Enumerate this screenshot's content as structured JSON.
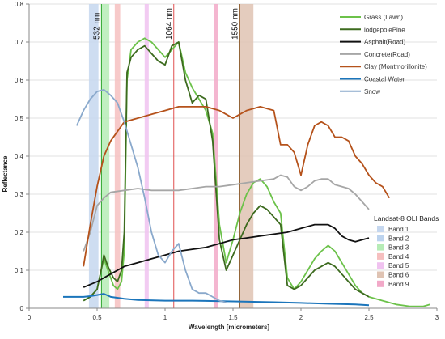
{
  "chart_data": {
    "type": "line",
    "title": "",
    "xlabel": "Wavelength [micrometers]",
    "ylabel": "Reflectance",
    "xlim": [
      0,
      3
    ],
    "ylim": [
      0,
      0.8
    ],
    "x_ticks": [
      0,
      0.5,
      1,
      1.5,
      2,
      2.5,
      3
    ],
    "x_tick_labels": [
      "0",
      "0.5",
      "1",
      "1.5",
      "2",
      "2.5",
      "3"
    ],
    "y_ticks": [
      0,
      0.1,
      0.2,
      0.3,
      0.4,
      0.5,
      0.6,
      0.7,
      0.8
    ],
    "y_tick_labels": [
      "0",
      "0.1",
      "0.2",
      "0.3",
      "0.4",
      "0.5",
      "0.6",
      "0.7",
      "0.8"
    ],
    "grid": "horizontal",
    "legend_position": "top-right",
    "series": [
      {
        "name": "Grass (Lawn)",
        "color": "#6cc24a",
        "width": 1.8,
        "x": [
          0.4,
          0.45,
          0.5,
          0.53,
          0.55,
          0.58,
          0.62,
          0.65,
          0.68,
          0.7,
          0.72,
          0.75,
          0.8,
          0.85,
          0.9,
          0.95,
          1.0,
          1.05,
          1.1,
          1.15,
          1.2,
          1.25,
          1.3,
          1.35,
          1.4,
          1.45,
          1.5,
          1.55,
          1.6,
          1.65,
          1.7,
          1.75,
          1.8,
          1.85,
          1.9,
          1.95,
          2.0,
          2.05,
          2.1,
          2.15,
          2.2,
          2.25,
          2.3,
          2.35,
          2.4,
          2.45,
          2.5,
          2.6,
          2.7,
          2.8,
          2.9,
          2.95
        ],
        "y": [
          0.02,
          0.03,
          0.05,
          0.1,
          0.13,
          0.1,
          0.06,
          0.05,
          0.07,
          0.15,
          0.6,
          0.68,
          0.7,
          0.71,
          0.7,
          0.68,
          0.66,
          0.68,
          0.7,
          0.62,
          0.58,
          0.55,
          0.52,
          0.46,
          0.22,
          0.12,
          0.18,
          0.25,
          0.3,
          0.33,
          0.34,
          0.32,
          0.28,
          0.25,
          0.08,
          0.05,
          0.07,
          0.1,
          0.13,
          0.15,
          0.165,
          0.15,
          0.12,
          0.09,
          0.06,
          0.04,
          0.03,
          0.02,
          0.01,
          0.005,
          0.005,
          0.01
        ]
      },
      {
        "name": "lodgepolePine",
        "color": "#3d6b1f",
        "width": 1.8,
        "x": [
          0.4,
          0.45,
          0.5,
          0.53,
          0.55,
          0.58,
          0.62,
          0.65,
          0.68,
          0.7,
          0.72,
          0.75,
          0.8,
          0.85,
          0.9,
          0.95,
          1.0,
          1.05,
          1.1,
          1.15,
          1.2,
          1.25,
          1.3,
          1.35,
          1.4,
          1.45,
          1.5,
          1.55,
          1.6,
          1.65,
          1.7,
          1.75,
          1.8,
          1.85,
          1.9,
          1.95,
          2.0,
          2.05,
          2.1,
          2.15,
          2.2,
          2.25,
          2.3,
          2.35,
          2.4,
          2.45,
          2.5
        ],
        "y": [
          0.02,
          0.03,
          0.05,
          0.1,
          0.14,
          0.11,
          0.08,
          0.07,
          0.1,
          0.2,
          0.62,
          0.66,
          0.68,
          0.69,
          0.67,
          0.65,
          0.64,
          0.69,
          0.7,
          0.6,
          0.54,
          0.56,
          0.55,
          0.44,
          0.18,
          0.1,
          0.14,
          0.18,
          0.22,
          0.25,
          0.27,
          0.26,
          0.24,
          0.22,
          0.06,
          0.05,
          0.06,
          0.08,
          0.1,
          0.11,
          0.12,
          0.11,
          0.09,
          0.07,
          0.05,
          0.04,
          0.03
        ]
      },
      {
        "name": "Asphalt(Road)",
        "color": "#111111",
        "width": 1.8,
        "x": [
          0.4,
          0.5,
          0.6,
          0.7,
          0.8,
          0.9,
          1.0,
          1.1,
          1.2,
          1.3,
          1.4,
          1.5,
          1.6,
          1.7,
          1.8,
          1.9,
          2.0,
          2.1,
          2.2,
          2.25,
          2.3,
          2.35,
          2.4,
          2.45,
          2.5
        ],
        "y": [
          0.055,
          0.07,
          0.09,
          0.11,
          0.12,
          0.13,
          0.14,
          0.15,
          0.155,
          0.16,
          0.17,
          0.18,
          0.185,
          0.19,
          0.195,
          0.2,
          0.21,
          0.22,
          0.22,
          0.21,
          0.19,
          0.18,
          0.175,
          0.18,
          0.185
        ]
      },
      {
        "name": "Concrete(Road)",
        "color": "#a6a6a6",
        "width": 1.8,
        "x": [
          0.4,
          0.45,
          0.5,
          0.55,
          0.6,
          0.7,
          0.8,
          0.9,
          1.0,
          1.1,
          1.2,
          1.3,
          1.4,
          1.5,
          1.6,
          1.7,
          1.8,
          1.85,
          1.9,
          1.95,
          2.0,
          2.05,
          2.1,
          2.15,
          2.2,
          2.25,
          2.3,
          2.35,
          2.4,
          2.45,
          2.5
        ],
        "y": [
          0.15,
          0.2,
          0.27,
          0.29,
          0.305,
          0.31,
          0.315,
          0.31,
          0.31,
          0.31,
          0.315,
          0.32,
          0.32,
          0.325,
          0.33,
          0.335,
          0.34,
          0.35,
          0.345,
          0.32,
          0.31,
          0.32,
          0.335,
          0.34,
          0.34,
          0.325,
          0.32,
          0.315,
          0.3,
          0.28,
          0.26
        ]
      },
      {
        "name": "Clay (Montmorillonite)",
        "color": "#b5521b",
        "width": 1.8,
        "x": [
          0.4,
          0.45,
          0.5,
          0.55,
          0.6,
          0.7,
          0.8,
          0.9,
          1.0,
          1.1,
          1.2,
          1.3,
          1.4,
          1.45,
          1.5,
          1.55,
          1.6,
          1.7,
          1.8,
          1.85,
          1.9,
          1.95,
          2.0,
          2.05,
          2.1,
          2.15,
          2.2,
          2.25,
          2.3,
          2.35,
          2.4,
          2.45,
          2.5,
          2.55,
          2.6,
          2.65
        ],
        "y": [
          0.11,
          0.22,
          0.32,
          0.4,
          0.44,
          0.49,
          0.5,
          0.51,
          0.52,
          0.53,
          0.53,
          0.53,
          0.52,
          0.51,
          0.5,
          0.51,
          0.52,
          0.53,
          0.52,
          0.43,
          0.43,
          0.41,
          0.35,
          0.43,
          0.48,
          0.49,
          0.48,
          0.45,
          0.45,
          0.44,
          0.4,
          0.38,
          0.35,
          0.33,
          0.32,
          0.29
        ]
      },
      {
        "name": "Coastal Water",
        "color": "#1b75bb",
        "width": 2,
        "x": [
          0.25,
          0.3,
          0.35,
          0.4,
          0.45,
          0.5,
          0.55,
          0.6,
          0.7,
          0.8,
          1.0,
          1.2,
          1.5,
          1.8,
          2.0,
          2.2,
          2.4,
          2.5
        ],
        "y": [
          0.03,
          0.03,
          0.03,
          0.03,
          0.032,
          0.035,
          0.038,
          0.03,
          0.025,
          0.022,
          0.02,
          0.02,
          0.018,
          0.016,
          0.014,
          0.012,
          0.01,
          0.008
        ]
      },
      {
        "name": "Snow",
        "color": "#8aa9cc",
        "width": 1.8,
        "x": [
          0.35,
          0.4,
          0.45,
          0.5,
          0.55,
          0.6,
          0.65,
          0.7,
          0.75,
          0.8,
          0.85,
          0.9,
          0.95,
          1.0,
          1.05,
          1.1,
          1.15,
          1.2,
          1.25,
          1.3,
          1.35,
          1.4,
          1.45
        ],
        "y": [
          0.48,
          0.52,
          0.55,
          0.57,
          0.575,
          0.56,
          0.54,
          0.49,
          0.43,
          0.37,
          0.29,
          0.2,
          0.14,
          0.12,
          0.15,
          0.17,
          0.1,
          0.05,
          0.04,
          0.04,
          0.03,
          0.02,
          0.015
        ]
      }
    ],
    "bands_legend_title": "Landsat-8 OLI Bands",
    "bands": [
      {
        "name": "Band 1",
        "range": [
          0.43,
          0.45
        ],
        "color": "#c5d7ef"
      },
      {
        "name": "Band 2",
        "range": [
          0.45,
          0.51
        ],
        "color": "#bcd3ee"
      },
      {
        "name": "Band 3",
        "range": [
          0.53,
          0.59
        ],
        "color": "#b6ecb6"
      },
      {
        "name": "Band 4",
        "range": [
          0.64,
          0.67
        ],
        "color": "#f6bfbf"
      },
      {
        "name": "Band 5",
        "range": [
          0.85,
          0.88
        ],
        "color": "#f0c2f0"
      },
      {
        "name": "Band 6",
        "range": [
          1.57,
          1.65
        ],
        "color": "#dfc3b3"
      },
      {
        "name": "Band 9",
        "range": [
          1.36,
          1.38
        ],
        "color": "#f2a9c8"
      }
    ],
    "band_shading": [
      {
        "x0": 0.44,
        "x1": 0.51,
        "color": "#c5d7ef"
      },
      {
        "x0": 0.53,
        "x1": 0.59,
        "color": "#b6ecb6"
      },
      {
        "x0": 0.63,
        "x1": 0.67,
        "color": "#f6bfbf"
      },
      {
        "x0": 0.85,
        "x1": 0.88,
        "color": "#f0c2f0"
      },
      {
        "x0": 1.36,
        "x1": 1.39,
        "color": "#f2a9c8"
      },
      {
        "x0": 1.55,
        "x1": 1.65,
        "color": "#dfc3b3"
      }
    ],
    "annotations": [
      {
        "text": "532 nm",
        "x": 0.532,
        "color": "#2aa52a"
      },
      {
        "text": "1064 nm",
        "x": 1.064,
        "color": "#e05050"
      },
      {
        "text": "1550 nm",
        "x": 1.55,
        "color": "#8b5a2b"
      }
    ]
  }
}
